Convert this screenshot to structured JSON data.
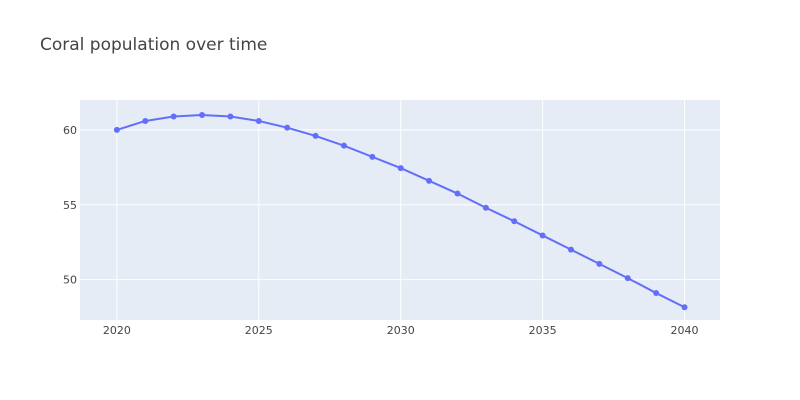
{
  "title": "Coral population over time",
  "colors": {
    "plot_bg": "#e5ecf6",
    "series": "#636efa",
    "grid": "#ffffff",
    "text": "#444444"
  },
  "chart_data": {
    "type": "line",
    "title": "Coral population over time",
    "xlabel": "",
    "ylabel": "",
    "x": [
      2020,
      2021,
      2022,
      2023,
      2024,
      2025,
      2026,
      2027,
      2028,
      2029,
      2030,
      2031,
      2032,
      2033,
      2034,
      2035,
      2036,
      2037,
      2038,
      2039,
      2040
    ],
    "series": [
      {
        "values": [
          60.0,
          60.6,
          60.9,
          61.0,
          60.9,
          60.6,
          60.15,
          59.6,
          58.95,
          58.2,
          57.45,
          56.6,
          55.75,
          54.8,
          53.9,
          52.95,
          52.0,
          51.05,
          50.1,
          49.1,
          48.15
        ],
        "mode": "lines+markers"
      }
    ],
    "xlim": [
      2018.7,
      2041.25
    ],
    "ylim": [
      47.3,
      62.0
    ],
    "xticks": [
      2020,
      2025,
      2030,
      2035,
      2040
    ],
    "yticks": [
      50,
      55,
      60
    ],
    "grid": true,
    "legend": "none"
  }
}
